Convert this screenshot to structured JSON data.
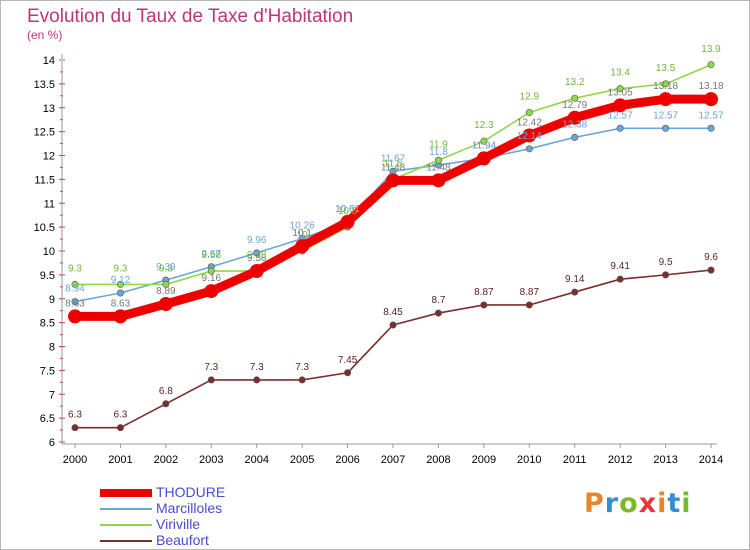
{
  "page": {
    "title": "Evolution du Taux de Taxe d'Habitation",
    "subtitle": "(en %)",
    "brand": "Proxiti",
    "brand_colors": [
      "#e8842a",
      "#2f8fd0",
      "#7aba2a",
      "#e03a3a",
      "#e8842a",
      "#2f8fd0",
      "#7aba2a"
    ]
  },
  "colors": {
    "title": "#c0347a",
    "legend_text": "#4a4ad0",
    "grid_tick": "#d23c6b",
    "axis": "#999999"
  },
  "chart_data": {
    "type": "line",
    "title": "Evolution du Taux de Taxe d'Habitation",
    "subtitle": "(en %)",
    "xlabel": "",
    "ylabel": "",
    "x": [
      "2000",
      "2001",
      "2002",
      "2003",
      "2004",
      "2005",
      "2006",
      "2007",
      "2008",
      "2009",
      "2010",
      "2011",
      "2012",
      "2013",
      "2014"
    ],
    "ylim": [
      6,
      14
    ],
    "yticks": [
      "6",
      "6.5",
      "7",
      "7.5",
      "8",
      "8.5",
      "9",
      "9.5",
      "10",
      "10.5",
      "11",
      "11.5",
      "12",
      "12.5",
      "13",
      "13.5",
      "14"
    ],
    "legend_position": "bottom-left",
    "series": [
      {
        "name": "THODURE",
        "color": "#ee0000",
        "values": [
          8.63,
          8.63,
          8.89,
          9.16,
          9.58,
          10.1,
          10.61,
          11.48,
          11.48,
          11.94,
          12.42,
          12.79,
          13.05,
          13.18,
          13.18
        ],
        "labels": [
          "8.63",
          "8.63",
          "8.89",
          "9.16",
          "9.58",
          "10.1",
          "10.61",
          "11.48",
          "11.48",
          "11.94",
          "12.42",
          "12.79",
          "13.05",
          "13.18",
          "13.18"
        ]
      },
      {
        "name": "Marcilloles",
        "color": "#6aa6d8",
        "values": [
          8.94,
          9.12,
          9.39,
          9.67,
          9.96,
          10.26,
          10.61,
          11.67,
          11.8,
          11.94,
          12.14,
          12.38,
          12.57,
          12.57,
          12.57
        ],
        "labels": [
          "8.94",
          "9.12",
          "9.39",
          "9.67",
          "9.96",
          "10.26",
          "10.61",
          "11.67",
          "11.8",
          "11.94",
          "12.14",
          "12.38",
          "12.57",
          "12.57",
          "12.57"
        ]
      },
      {
        "name": "Viriville",
        "color": "#8ed84a",
        "values": [
          9.3,
          9.3,
          9.3,
          9.58,
          9.58,
          10.0,
          10.5,
          11.5,
          11.9,
          12.3,
          12.9,
          13.2,
          13.4,
          13.5,
          13.9
        ],
        "labels": [
          "9.3",
          "9.3",
          "9.3",
          "9.58",
          "9.58",
          "10",
          "10.5",
          "11.5",
          "11.9",
          "12.3",
          "12.9",
          "13.2",
          "13.4",
          "13.5",
          "13.9"
        ]
      },
      {
        "name": "Beaufort",
        "color": "#7a2e2e",
        "values": [
          6.3,
          6.3,
          6.8,
          7.3,
          7.3,
          7.3,
          7.45,
          8.45,
          8.7,
          8.87,
          8.87,
          9.14,
          9.41,
          9.5,
          9.6
        ],
        "labels": [
          "6.3",
          "6.3",
          "6.8",
          "7.3",
          "7.3",
          "7.3",
          "7.45",
          "8.45",
          "8.7",
          "8.87",
          "8.87",
          "9.14",
          "9.41",
          "9.5",
          "9.6"
        ]
      }
    ]
  }
}
